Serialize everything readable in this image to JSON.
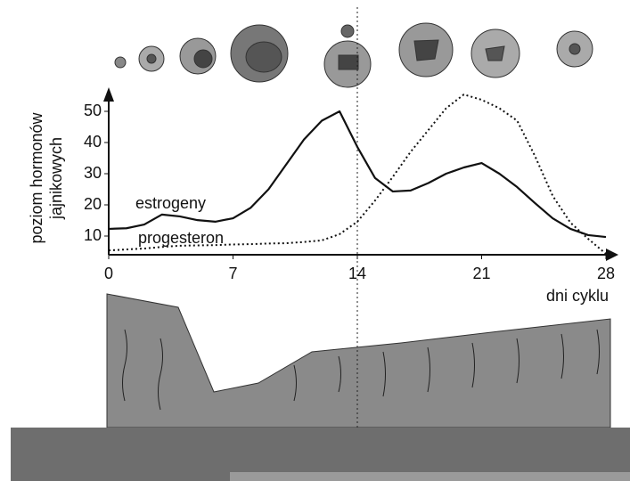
{
  "chart_data": {
    "type": "line",
    "ylabel": [
      "poziom hormonów",
      "jajnikowych"
    ],
    "xlabel": "dni cyklu",
    "x": [
      0,
      1,
      2,
      3,
      4,
      5,
      6,
      7,
      8,
      9,
      10,
      11,
      12,
      13,
      14,
      15,
      16,
      17,
      18,
      19,
      20,
      21,
      22,
      23,
      24,
      25,
      26,
      27,
      28
    ],
    "series": [
      {
        "name": "estrogeny",
        "color": "#111111",
        "dash": "solid",
        "values": [
          12.3,
          12.5,
          13.7,
          16.9,
          16.3,
          15.1,
          14.6,
          15.7,
          19.1,
          25,
          33,
          41,
          47,
          50,
          38.6,
          28.6,
          24.3,
          24.6,
          27,
          30,
          32,
          33.4,
          30,
          25.7,
          20.6,
          15.7,
          12.3,
          10.3,
          9.7
        ]
      },
      {
        "name": "progesteron",
        "color": "#111111",
        "dash": "dotted",
        "values": [
          5.4,
          5.7,
          6,
          6.5,
          6.9,
          7,
          7.1,
          7.3,
          7.4,
          7.6,
          7.7,
          8.1,
          8.6,
          10.6,
          14.6,
          21.4,
          29,
          37,
          44,
          51,
          55.4,
          53.7,
          51,
          47,
          35.7,
          22.9,
          14.3,
          9.1,
          4.3
        ]
      }
    ],
    "xlim": [
      0,
      28
    ],
    "xticks": [
      0,
      7,
      14,
      21,
      28
    ],
    "ylim": [
      4,
      56
    ],
    "yticks": [
      10,
      20,
      30,
      40,
      50
    ]
  }
}
